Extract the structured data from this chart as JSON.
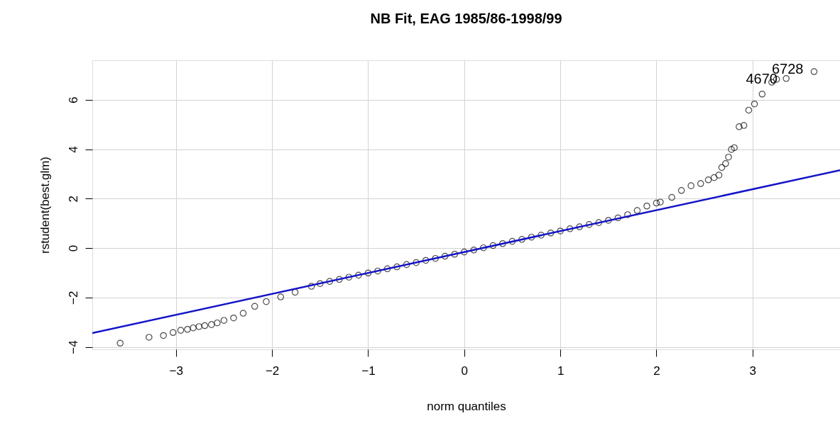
{
  "chart_data": {
    "type": "scatter",
    "title": "NB Fit, EAG 1985/86-1998/99",
    "xlabel": "norm quantiles",
    "ylabel": "rstudent(best.glm)",
    "xlim": [
      -3.87,
      3.91
    ],
    "ylim": [
      -4.1,
      7.6
    ],
    "xticks": [
      -3,
      -2,
      -1,
      0,
      1,
      2,
      3
    ],
    "yticks": [
      -4,
      -2,
      0,
      2,
      4,
      6
    ],
    "grid": true,
    "series": [
      {
        "marker": "circle",
        "color": "#000000",
        "x": [
          -3.58,
          -3.28,
          -3.13,
          -3.03,
          -2.95,
          -2.88,
          -2.82,
          -2.76,
          -2.7,
          -2.63,
          -2.57,
          -2.5,
          -2.4,
          -2.3,
          -2.18,
          -2.06,
          -1.91,
          -1.76,
          -1.59,
          -1.5,
          -1.4,
          -1.3,
          -1.2,
          -1.1,
          -1.0,
          -0.9,
          -0.8,
          -0.7,
          -0.6,
          -0.5,
          -0.4,
          -0.3,
          -0.2,
          -0.1,
          0.0,
          0.1,
          0.2,
          0.3,
          0.4,
          0.5,
          0.6,
          0.7,
          0.8,
          0.9,
          1.0,
          1.1,
          1.2,
          1.3,
          1.4,
          1.5,
          1.6,
          1.7,
          1.8,
          1.9,
          2.0,
          2.04,
          2.16,
          2.26,
          2.36,
          2.46,
          2.54,
          2.6,
          2.65,
          2.68,
          2.72,
          2.75,
          2.78,
          2.81,
          2.86,
          2.91,
          2.96,
          3.02,
          3.1,
          3.2,
          3.25,
          3.35,
          3.64
        ],
        "values": [
          -3.85,
          -3.61,
          -3.54,
          -3.42,
          -3.33,
          -3.29,
          -3.23,
          -3.18,
          -3.14,
          -3.1,
          -3.03,
          -2.93,
          -2.83,
          -2.64,
          -2.36,
          -2.17,
          -1.98,
          -1.79,
          -1.55,
          -1.44,
          -1.35,
          -1.27,
          -1.18,
          -1.1,
          -1.01,
          -0.93,
          -0.84,
          -0.76,
          -0.67,
          -0.59,
          -0.5,
          -0.42,
          -0.33,
          -0.25,
          -0.16,
          -0.08,
          0.01,
          0.1,
          0.18,
          0.27,
          0.35,
          0.44,
          0.52,
          0.61,
          0.69,
          0.78,
          0.86,
          0.95,
          1.03,
          1.12,
          1.22,
          1.35,
          1.52,
          1.7,
          1.82,
          1.86,
          2.05,
          2.33,
          2.52,
          2.61,
          2.76,
          2.85,
          2.95,
          3.26,
          3.42,
          3.68,
          3.99,
          4.06,
          4.91,
          4.96,
          5.58,
          5.83,
          6.23,
          6.71,
          6.83,
          6.86,
          7.14
        ]
      },
      {
        "type": "line",
        "color": "#1414c8",
        "x": [
          -3.87,
          3.91
        ],
        "values": [
          -3.44,
          3.15
        ]
      }
    ],
    "annotations": [
      {
        "text": "4670",
        "x": 3.2,
        "y": 6.71
      },
      {
        "text": "6728",
        "x": 3.35,
        "y": 6.86
      }
    ]
  }
}
